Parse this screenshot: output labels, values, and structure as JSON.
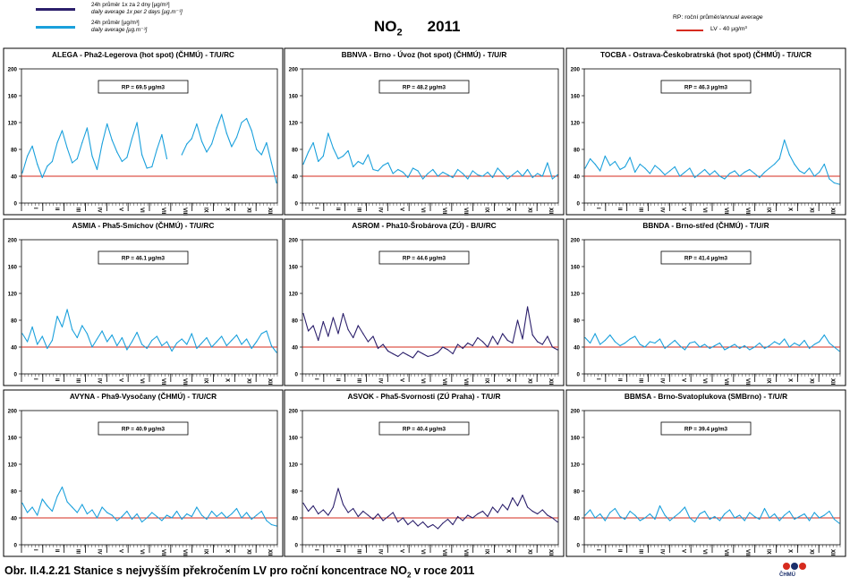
{
  "legend": {
    "items": [
      {
        "label": "24h průměr 1x za 2 dny [µg/m³]",
        "label_en": "daily average 1x per 2 days [µg.m⁻³]",
        "color": "#2b1f6b"
      },
      {
        "label": "24h průměr [µg/m³]",
        "label_en": "daily average [µg.m⁻³]",
        "color": "#1aa0dc"
      }
    ],
    "rp_note": "RP: roční průměr",
    "rp_note_en": "/annual average",
    "lv_label": "LV - 40 µg/m³",
    "lv_color": "#d62b1e"
  },
  "title": {
    "pollutant": "NO",
    "subscript": "2",
    "year": "2011"
  },
  "caption": {
    "prefix": "Obr. II.4.2.21  Stanice s nejvyšším překročením LV pro roční koncentrace NO",
    "subscript": "2",
    "suffix": " v roce 2011"
  },
  "logo": {
    "text": "ČHMÚ",
    "dot_colors": [
      "#d62b1e",
      "#1b2f6b",
      "#d62b1e"
    ]
  },
  "chart_data": [
    {
      "type": "line",
      "title": "ALEGA - Pha2-Legerova (hot spot) (ČHMÚ) - T/U/RC",
      "rp_label": "RP = 69.5 µg/m3",
      "series_kind": "daily",
      "color": "#1aa0dc",
      "ylim": [
        0,
        200
      ],
      "yticks": [
        0,
        40,
        80,
        120,
        160,
        200
      ],
      "limit": 40,
      "months": [
        "I",
        "II",
        "III",
        "IV",
        "V",
        "VI",
        "VII",
        "VIII",
        "IX",
        "X",
        "XI",
        "XII"
      ],
      "values": [
        45,
        70,
        85,
        58,
        38,
        55,
        62,
        90,
        108,
        82,
        60,
        66,
        90,
        112,
        70,
        50,
        88,
        118,
        94,
        76,
        62,
        68,
        96,
        120,
        72,
        52,
        54,
        80,
        102,
        66,
        null,
        null,
        72,
        88,
        96,
        118,
        92,
        76,
        88,
        112,
        132,
        104,
        84,
        98,
        120,
        126,
        108,
        80,
        72,
        90,
        60,
        30
      ]
    },
    {
      "type": "line",
      "title": "BBNVA - Brno - Úvoz (hot spot) (ČHMÚ) - T/U/R",
      "rp_label": "RP = 48.2 µg/m3",
      "series_kind": "daily",
      "color": "#1aa0dc",
      "ylim": [
        0,
        200
      ],
      "yticks": [
        0,
        40,
        80,
        120,
        160,
        200
      ],
      "limit": 40,
      "months": [
        "I",
        "II",
        "III",
        "IV",
        "V",
        "VI",
        "VII",
        "VIII",
        "IX",
        "X",
        "XI",
        "XII"
      ],
      "values": [
        58,
        76,
        90,
        62,
        70,
        104,
        82,
        66,
        70,
        78,
        54,
        62,
        58,
        72,
        50,
        48,
        56,
        60,
        44,
        50,
        46,
        38,
        52,
        48,
        36,
        44,
        50,
        40,
        46,
        42,
        38,
        50,
        44,
        36,
        48,
        42,
        40,
        46,
        38,
        52,
        44,
        36,
        42,
        48,
        40,
        50,
        38,
        44,
        40,
        60,
        36,
        42
      ]
    },
    {
      "type": "line",
      "title": "TOCBA - Ostrava-Českobratrská (hot spot) (ČHMÚ) - T/U/CR",
      "rp_label": "RP = 46.3 µg/m3",
      "series_kind": "daily",
      "color": "#1aa0dc",
      "ylim": [
        0,
        200
      ],
      "yticks": [
        0,
        40,
        80,
        120,
        160,
        200
      ],
      "limit": 40,
      "months": [
        "I",
        "II",
        "III",
        "IV",
        "V",
        "VI",
        "VII",
        "VIII",
        "IX",
        "X",
        "XI",
        "XII"
      ],
      "values": [
        52,
        66,
        58,
        48,
        70,
        56,
        62,
        50,
        54,
        68,
        46,
        58,
        52,
        44,
        56,
        50,
        42,
        48,
        54,
        40,
        46,
        52,
        38,
        44,
        50,
        42,
        48,
        40,
        36,
        44,
        48,
        40,
        46,
        50,
        44,
        38,
        46,
        52,
        58,
        66,
        94,
        72,
        58,
        48,
        44,
        52,
        40,
        46,
        58,
        36,
        30,
        28
      ]
    },
    {
      "type": "line",
      "title": "ASMIA - Pha5-Smíchov (ČHMÚ) - T/U/RC",
      "rp_label": "RP = 46.1 µg/m3",
      "series_kind": "daily",
      "color": "#1aa0dc",
      "ylim": [
        0,
        200
      ],
      "yticks": [
        0,
        40,
        80,
        120,
        160,
        200
      ],
      "limit": 40,
      "months": [
        "I",
        "II",
        "III",
        "IV",
        "V",
        "VI",
        "VII",
        "VIII",
        "IX",
        "X",
        "XI",
        "XII"
      ],
      "values": [
        60,
        48,
        70,
        44,
        56,
        38,
        50,
        86,
        70,
        96,
        66,
        54,
        72,
        60,
        40,
        52,
        64,
        48,
        58,
        42,
        54,
        36,
        48,
        62,
        44,
        38,
        50,
        56,
        42,
        48,
        34,
        46,
        52,
        44,
        60,
        38,
        46,
        54,
        40,
        48,
        56,
        42,
        50,
        58,
        44,
        52,
        38,
        48,
        60,
        64,
        42,
        32
      ]
    },
    {
      "type": "line",
      "title": "ASROM - Pha10-Šrobárova (ZÚ) - B/U/RC",
      "rp_label": "RP = 44.6 µg/m3",
      "series_kind": "alternate",
      "color": "#2b1f6b",
      "ylim": [
        0,
        200
      ],
      "yticks": [
        0,
        40,
        80,
        120,
        160,
        200
      ],
      "limit": 40,
      "months": [
        "I",
        "II",
        "III",
        "IV",
        "V",
        "VI",
        "VII",
        "VIII",
        "IX",
        "X",
        "XI",
        "XII"
      ],
      "values": [
        90,
        64,
        72,
        50,
        78,
        56,
        84,
        60,
        90,
        66,
        54,
        72,
        60,
        48,
        56,
        38,
        44,
        34,
        30,
        26,
        32,
        28,
        24,
        34,
        30,
        26,
        28,
        32,
        40,
        36,
        30,
        44,
        38,
        46,
        42,
        54,
        48,
        40,
        56,
        44,
        60,
        50,
        46,
        80,
        52,
        100,
        58,
        48,
        44,
        56,
        40,
        36
      ]
    },
    {
      "type": "line",
      "title": "BBNDA - Brno-střed (ČHMÚ) - T/U/R",
      "rp_label": "RP = 41.4 µg/m3",
      "series_kind": "daily",
      "color": "#1aa0dc",
      "ylim": [
        0,
        200
      ],
      "yticks": [
        0,
        40,
        80,
        120,
        160,
        200
      ],
      "limit": 40,
      "months": [
        "I",
        "II",
        "III",
        "IV",
        "V",
        "VI",
        "VII",
        "VIII",
        "IX",
        "X",
        "XI",
        "XII"
      ],
      "values": [
        54,
        46,
        60,
        44,
        50,
        58,
        48,
        42,
        46,
        52,
        56,
        44,
        40,
        48,
        46,
        52,
        38,
        44,
        50,
        42,
        36,
        46,
        48,
        40,
        44,
        38,
        42,
        46,
        36,
        40,
        44,
        38,
        42,
        36,
        40,
        46,
        38,
        42,
        48,
        44,
        52,
        40,
        46,
        42,
        50,
        38,
        44,
        48,
        58,
        46,
        40,
        34
      ]
    },
    {
      "type": "line",
      "title": "AVYNA - Pha9-Vysočany (ČHMÚ) - T/U/CR",
      "rp_label": "RP = 40.9 µg/m3",
      "series_kind": "daily",
      "color": "#1aa0dc",
      "ylim": [
        0,
        200
      ],
      "yticks": [
        0,
        40,
        80,
        120,
        160,
        200
      ],
      "limit": 40,
      "months": [
        "I",
        "II",
        "III",
        "IV",
        "V",
        "VI",
        "VII",
        "VIII",
        "IX",
        "X",
        "XI",
        "XII"
      ],
      "values": [
        62,
        48,
        56,
        44,
        68,
        58,
        50,
        72,
        86,
        64,
        56,
        48,
        60,
        46,
        52,
        40,
        56,
        48,
        44,
        36,
        42,
        50,
        38,
        46,
        34,
        40,
        48,
        42,
        36,
        44,
        40,
        50,
        38,
        46,
        42,
        56,
        44,
        38,
        50,
        42,
        48,
        40,
        46,
        54,
        40,
        48,
        38,
        44,
        50,
        36,
        30,
        28
      ]
    },
    {
      "type": "line",
      "title": "ASVOK - Pha5-Svornosti (ZÚ Praha) - T/U/R",
      "rp_label": "RP = 40.4 µg/m3",
      "series_kind": "alternate",
      "color": "#2b1f6b",
      "ylim": [
        0,
        200
      ],
      "yticks": [
        0,
        40,
        80,
        120,
        160,
        200
      ],
      "limit": 40,
      "months": [
        "I",
        "II",
        "III",
        "IV",
        "V",
        "VI",
        "VII",
        "VIII",
        "IX",
        "X",
        "XI",
        "XII"
      ],
      "values": [
        62,
        50,
        58,
        46,
        52,
        44,
        56,
        84,
        60,
        48,
        54,
        42,
        50,
        44,
        38,
        46,
        36,
        42,
        48,
        34,
        40,
        30,
        36,
        28,
        34,
        26,
        30,
        24,
        32,
        38,
        30,
        42,
        36,
        44,
        40,
        46,
        50,
        42,
        56,
        48,
        60,
        52,
        70,
        58,
        74,
        56,
        50,
        46,
        52,
        44,
        40,
        34
      ]
    },
    {
      "type": "line",
      "title": "BBMSA - Brno-Svatoplukova (SMBrno) - T/U/R",
      "rp_label": "RP = 39.4 µg/m3",
      "series_kind": "daily",
      "color": "#1aa0dc",
      "ylim": [
        0,
        200
      ],
      "yticks": [
        0,
        40,
        80,
        120,
        160,
        200
      ],
      "limit": 40,
      "months": [
        "I",
        "II",
        "III",
        "IV",
        "V",
        "VI",
        "VII",
        "VIII",
        "IX",
        "X",
        "XI",
        "XII"
      ],
      "values": [
        44,
        52,
        40,
        46,
        36,
        48,
        54,
        42,
        38,
        50,
        44,
        36,
        40,
        46,
        38,
        58,
        44,
        36,
        42,
        48,
        56,
        40,
        34,
        46,
        50,
        38,
        42,
        36,
        46,
        52,
        40,
        44,
        36,
        48,
        42,
        38,
        54,
        40,
        46,
        36,
        44,
        50,
        38,
        42,
        46,
        36,
        48,
        40,
        44,
        50,
        38,
        32
      ]
    }
  ]
}
